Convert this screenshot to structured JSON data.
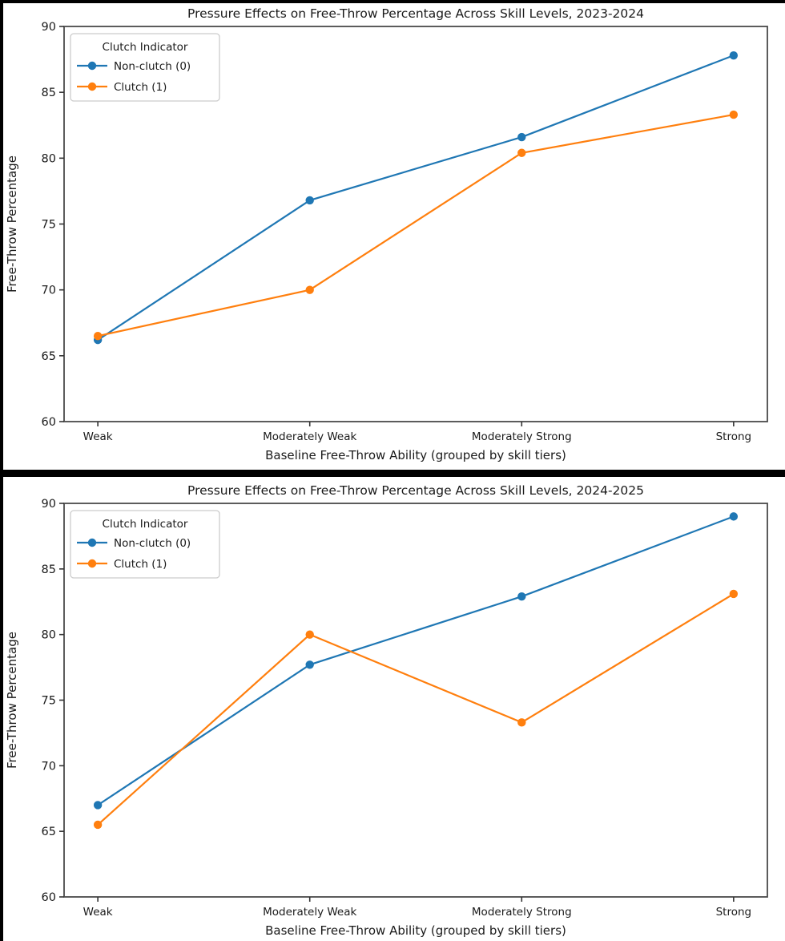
{
  "page": {
    "background": "#ffffff",
    "frame_color": "#000000",
    "spine_color": "#4a4a4a",
    "tick_color": "#333333",
    "text_color": "#1a1a1a"
  },
  "chart_data": [
    {
      "type": "line",
      "title": "Pressure Effects on Free-Throw Percentage Across Skill Levels, 2023-2024",
      "xlabel": "Baseline Free-Throw Ability (grouped by skill tiers)",
      "ylabel": "Free-Throw Percentage",
      "categories": [
        "Weak",
        "Moderately Weak",
        "Moderately Strong",
        "Strong"
      ],
      "series": [
        {
          "name": "Non-clutch (0)",
          "color": "#1f77b4",
          "values": [
            66.2,
            76.8,
            81.6,
            87.8
          ]
        },
        {
          "name": "Clutch (1)",
          "color": "#ff7f0e",
          "values": [
            66.5,
            70.0,
            80.4,
            83.3
          ]
        }
      ],
      "ylim": [
        60,
        90
      ],
      "yticks": [
        60,
        65,
        70,
        75,
        80,
        85,
        90
      ],
      "legend_title": "Clutch Indicator",
      "legend_position": "upper left",
      "grid": false,
      "marker": "circle"
    },
    {
      "type": "line",
      "title": "Pressure Effects on Free-Throw Percentage Across Skill Levels, 2024-2025",
      "xlabel": "Baseline Free-Throw Ability (grouped by skill tiers)",
      "ylabel": "Free-Throw Percentage",
      "categories": [
        "Weak",
        "Moderately Weak",
        "Moderately Strong",
        "Strong"
      ],
      "series": [
        {
          "name": "Non-clutch (0)",
          "color": "#1f77b4",
          "values": [
            67.0,
            77.7,
            82.9,
            89.0
          ]
        },
        {
          "name": "Clutch (1)",
          "color": "#ff7f0e",
          "values": [
            65.5,
            80.0,
            73.3,
            83.1
          ]
        }
      ],
      "ylim": [
        60,
        90
      ],
      "yticks": [
        60,
        65,
        70,
        75,
        80,
        85,
        90
      ],
      "legend_title": "Clutch Indicator",
      "legend_position": "upper left",
      "grid": false,
      "marker": "circle"
    }
  ]
}
